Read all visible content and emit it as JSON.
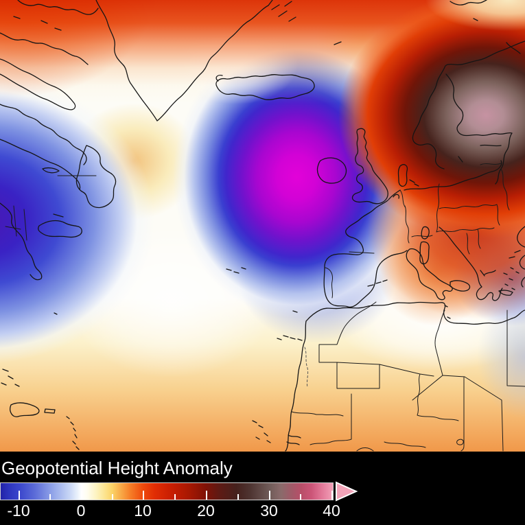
{
  "legend": {
    "title": "Geopotential Height Anomaly",
    "ticks": [
      {
        "label": "-10",
        "pos": 27
      },
      {
        "label": "0",
        "pos": 118
      },
      {
        "label": "10",
        "pos": 208
      },
      {
        "label": "20",
        "pos": 300
      },
      {
        "label": "30",
        "pos": 392
      },
      {
        "label": "40",
        "pos": 483
      }
    ],
    "minor_ticks": [
      72,
      163,
      254,
      346,
      437
    ],
    "arrow_fill": "#f2a3b8",
    "arrow_stroke": "#ffffff",
    "title_color": "#ffffff",
    "background_color": "#000000",
    "colorbar_key_colors": {
      "neg_end_blue": "#2222a8",
      "zero_white": "#ffffff",
      "plus5_yellow": "#fbd468",
      "plus10_red": "#ee4a0c",
      "plus20_dark_red": "#801206",
      "plus25_dark_brown": "#45211d",
      "plus30_gray": "#6e5a57",
      "plus40_pink": "#f2a0b8"
    }
  },
  "chart_data": {
    "type": "heatmap",
    "title": "Geopotential Height Anomaly",
    "colorbar": {
      "tick_labels": [
        -10,
        0,
        10,
        20,
        30,
        40
      ],
      "minor_tick_values": [
        -5,
        5,
        15,
        25,
        35
      ],
      "open_ended_max_arrow": true
    },
    "anomaly_centers": [
      {
        "location": "central North Atlantic, SW of Iceland / W of Ireland",
        "sign": "negative",
        "approx_value": -13,
        "appearance": "magenta-purple core fading through blue to white"
      },
      {
        "location": "NE North America (Labrador / Quebec / New England)",
        "sign": "negative",
        "approx_value": -12,
        "appearance": "blue-purple blob centred off west edge"
      },
      {
        "location": "Scandinavia / Baltic",
        "sign": "positive",
        "approx_value": 34,
        "appearance": "pink-gray core inside dark brown ring and bright red halo"
      },
      {
        "location": "Arctic band along top edge",
        "sign": "positive",
        "approx_value": 12,
        "appearance": "red-orange band"
      },
      {
        "location": "Aegean Sea / Greece",
        "sign": "negative",
        "approx_value": -4,
        "appearance": "pale blue patch"
      },
      {
        "location": "Iberia / NW African coast",
        "sign": "negative",
        "approx_value": -5,
        "appearance": "pale blue"
      },
      {
        "location": "Sahara / Sahel",
        "sign": "positive",
        "approx_value": 8,
        "appearance": "yellow to orange gradient"
      },
      {
        "location": "SE of Newfoundland",
        "sign": "positive",
        "approx_value": 4,
        "appearance": "light yellow-tan patch"
      }
    ],
    "basemap": "coastlines and country borders, North Atlantic / Europe / North Africa"
  }
}
